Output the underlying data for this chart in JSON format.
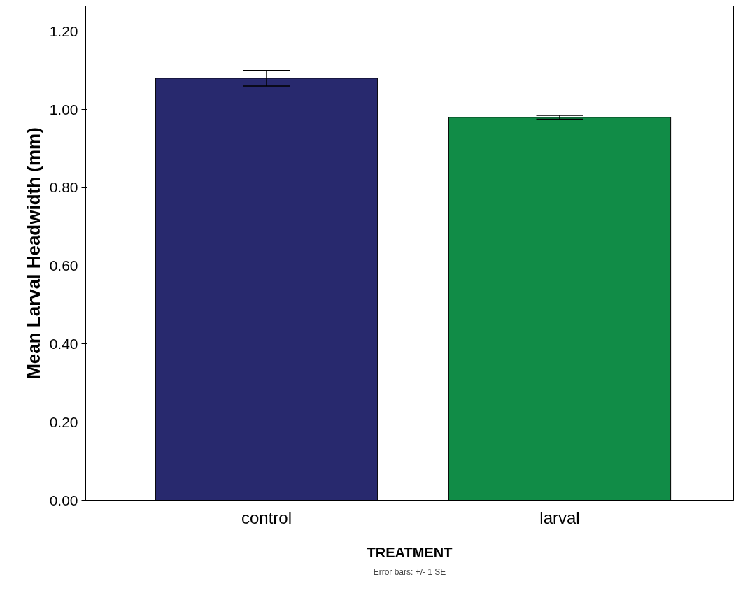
{
  "chart_data": {
    "type": "bar",
    "categories": [
      "control",
      "larval"
    ],
    "values": [
      1.08,
      0.98
    ],
    "colors": [
      "#28296e",
      "#118c47"
    ],
    "errors": [
      0.02,
      0.005
    ],
    "xlabel": "TREATMENT",
    "ylabel": "Mean Larval Headwidth (mm)",
    "ylim": [
      0,
      1.265
    ],
    "yticks": [
      {
        "value": 0,
        "label": "0.00"
      },
      {
        "value": 0.2,
        "label": "0.20"
      },
      {
        "value": 0.4,
        "label": "0.40"
      },
      {
        "value": 0.6,
        "label": "0.60"
      },
      {
        "value": 0.8,
        "label": "0.80"
      },
      {
        "value": 1.0,
        "label": "1.00"
      },
      {
        "value": 1.2,
        "label": "1.20"
      }
    ],
    "annotations": [
      "Error bars: +/- 1 SE"
    ],
    "grid": false
  }
}
